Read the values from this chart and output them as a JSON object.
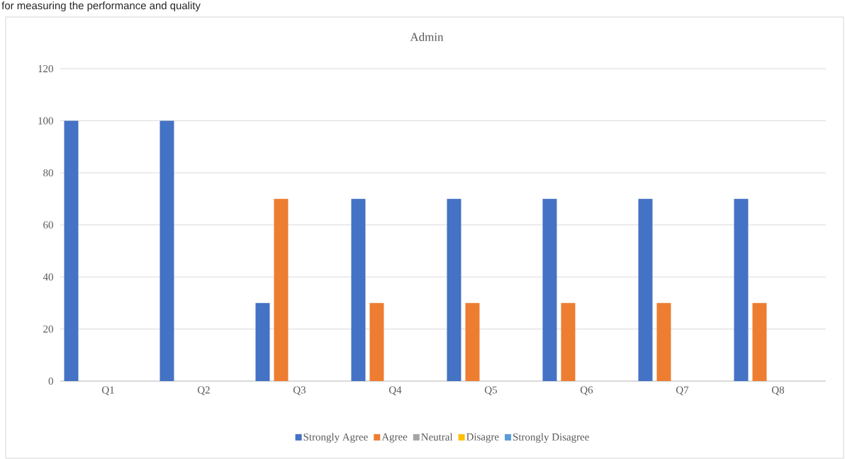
{
  "chart_data": {
    "type": "bar",
    "title": "Admin",
    "annotations": [
      "for measuring the performance and quality"
    ],
    "categories": [
      "Q1",
      "Q2",
      "Q3",
      "Q4",
      "Q5",
      "Q6",
      "Q7",
      "Q8"
    ],
    "series": [
      {
        "name": "Strongly Agree",
        "color": "#4472c4",
        "values": [
          100,
          100,
          30,
          70,
          70,
          70,
          70,
          70
        ]
      },
      {
        "name": "Agree",
        "color": "#ed7d31",
        "values": [
          0,
          0,
          70,
          30,
          30,
          30,
          30,
          30
        ]
      },
      {
        "name": "Neutral",
        "color": "#a5a5a5",
        "values": [
          0,
          0,
          0,
          0,
          0,
          0,
          0,
          0
        ]
      },
      {
        "name": "Disagre",
        "color": "#ffc000",
        "values": [
          0,
          0,
          0,
          0,
          0,
          0,
          0,
          0
        ]
      },
      {
        "name": "Strongly Disagree",
        "color": "#5b9bd5",
        "values": [
          0,
          0,
          0,
          0,
          0,
          0,
          0,
          0
        ]
      }
    ],
    "ylim": [
      0,
      120
    ],
    "yticks": [
      0,
      20,
      40,
      60,
      80,
      100,
      120
    ],
    "grid": "y",
    "legend": "bottom"
  }
}
